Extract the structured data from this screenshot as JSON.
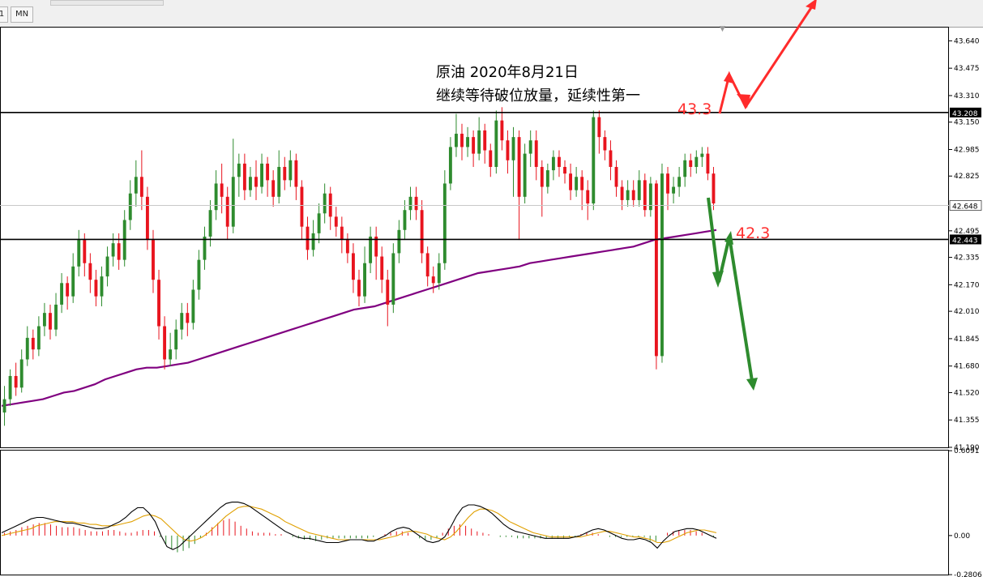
{
  "toolbar": {
    "timeframes": [
      "1",
      "MN"
    ]
  },
  "chart_data": {
    "type": "candlestick",
    "annotation": {
      "line1": "原油 2020年8月21日",
      "line2": "继续等待破位放量，延续性第一"
    },
    "price_axis": {
      "ticks": [
        "43.640",
        "43.475",
        "43.310",
        "43.150",
        "42.985",
        "42.825",
        "42.495",
        "42.335",
        "42.170",
        "42.010",
        "41.845",
        "41.680",
        "41.520",
        "41.355",
        "41.190"
      ]
    },
    "ylim": [
      41.19,
      43.72
    ],
    "levels": [
      {
        "value": 43.208,
        "label": "43.208",
        "color": "#000000"
      },
      {
        "value": 42.443,
        "label": "42.443",
        "color": "#000000"
      }
    ],
    "current_price": {
      "value": 42.648,
      "label": "42.648"
    },
    "target_labels": [
      {
        "text": "43.3",
        "color": "#ff3030"
      },
      {
        "text": "42.3",
        "color": "#ff3030"
      }
    ],
    "candles": [
      [
        41.4,
        41.48,
        41.32,
        41.56
      ],
      [
        41.48,
        41.62,
        41.44,
        41.66
      ],
      [
        41.62,
        41.55,
        41.5,
        41.7
      ],
      [
        41.55,
        41.72,
        41.52,
        41.78
      ],
      [
        41.72,
        41.85,
        41.68,
        41.92
      ],
      [
        41.85,
        41.78,
        41.72,
        41.9
      ],
      [
        41.78,
        41.92,
        41.74,
        41.98
      ],
      [
        41.92,
        42.0,
        41.86,
        42.06
      ],
      [
        42.0,
        41.9,
        41.84,
        42.05
      ],
      [
        41.9,
        42.05,
        41.86,
        42.12
      ],
      [
        42.05,
        42.18,
        42.0,
        42.24
      ],
      [
        42.18,
        42.1,
        42.02,
        42.22
      ],
      [
        42.1,
        42.28,
        42.06,
        42.36
      ],
      [
        42.28,
        42.44,
        42.22,
        42.5
      ],
      [
        42.44,
        42.3,
        42.22,
        42.48
      ],
      [
        42.3,
        42.2,
        42.12,
        42.36
      ],
      [
        42.2,
        42.1,
        42.04,
        42.26
      ],
      [
        42.1,
        42.22,
        42.04,
        42.28
      ],
      [
        42.22,
        42.34,
        42.16,
        42.4
      ],
      [
        42.34,
        42.42,
        42.28,
        42.48
      ],
      [
        42.42,
        42.32,
        42.26,
        42.48
      ],
      [
        42.32,
        42.56,
        42.28,
        42.62
      ],
      [
        42.56,
        42.72,
        42.5,
        42.8
      ],
      [
        42.72,
        42.82,
        42.64,
        42.92
      ],
      [
        42.82,
        42.7,
        42.62,
        42.98
      ],
      [
        42.7,
        42.44,
        42.38,
        42.76
      ],
      [
        42.44,
        42.2,
        42.12,
        42.5
      ],
      [
        42.2,
        41.92,
        41.84,
        42.26
      ],
      [
        41.92,
        41.72,
        41.66,
        41.98
      ],
      [
        41.72,
        41.78,
        41.68,
        41.88
      ],
      [
        41.78,
        41.9,
        41.72,
        41.96
      ],
      [
        41.9,
        42.0,
        41.84,
        42.06
      ],
      [
        42.0,
        41.94,
        41.86,
        42.06
      ],
      [
        41.94,
        42.14,
        41.9,
        42.2
      ],
      [
        42.14,
        42.32,
        42.08,
        42.38
      ],
      [
        42.32,
        42.46,
        42.26,
        42.52
      ],
      [
        42.46,
        42.62,
        42.4,
        42.68
      ],
      [
        42.62,
        42.78,
        42.56,
        42.86
      ],
      [
        42.78,
        42.7,
        42.6,
        42.9
      ],
      [
        42.7,
        42.52,
        42.44,
        42.76
      ],
      [
        42.52,
        42.82,
        42.48,
        43.05
      ],
      [
        42.82,
        42.9,
        42.7,
        42.96
      ],
      [
        42.9,
        42.74,
        42.68,
        42.96
      ],
      [
        42.74,
        42.82,
        42.7,
        42.88
      ],
      [
        42.82,
        42.76,
        42.68,
        42.92
      ],
      [
        42.76,
        42.9,
        42.72,
        42.96
      ],
      [
        42.9,
        42.8,
        42.7,
        42.94
      ],
      [
        42.8,
        42.7,
        42.64,
        42.86
      ],
      [
        42.7,
        42.88,
        42.66,
        42.98
      ],
      [
        42.88,
        42.8,
        42.74,
        42.94
      ],
      [
        42.8,
        42.92,
        42.76,
        42.98
      ],
      [
        42.92,
        42.76,
        42.68,
        42.96
      ],
      [
        42.76,
        42.52,
        42.44,
        42.8
      ],
      [
        42.52,
        42.38,
        42.32,
        42.58
      ],
      [
        42.38,
        42.48,
        42.34,
        42.56
      ],
      [
        42.48,
        42.6,
        42.42,
        42.66
      ],
      [
        42.6,
        42.72,
        42.54,
        42.78
      ],
      [
        42.72,
        42.58,
        42.5,
        42.76
      ],
      [
        42.58,
        42.52,
        42.46,
        42.64
      ],
      [
        42.52,
        42.44,
        42.36,
        42.58
      ],
      [
        42.44,
        42.36,
        42.3,
        42.48
      ],
      [
        42.36,
        42.2,
        42.12,
        42.42
      ],
      [
        42.2,
        42.1,
        42.04,
        42.26
      ],
      [
        42.1,
        42.3,
        42.06,
        42.4
      ],
      [
        42.3,
        42.46,
        42.24,
        42.52
      ],
      [
        42.46,
        42.34,
        42.2,
        42.52
      ],
      [
        42.34,
        42.2,
        42.12,
        42.4
      ],
      [
        42.2,
        42.05,
        41.92,
        42.26
      ],
      [
        42.05,
        42.36,
        42.0,
        42.42
      ],
      [
        42.36,
        42.5,
        42.3,
        42.56
      ],
      [
        42.5,
        42.62,
        42.44,
        42.68
      ],
      [
        42.62,
        42.7,
        42.56,
        42.76
      ],
      [
        42.7,
        42.62,
        42.56,
        42.76
      ],
      [
        42.62,
        42.36,
        42.3,
        42.68
      ],
      [
        42.36,
        42.22,
        42.16,
        42.4
      ],
      [
        42.22,
        42.18,
        42.12,
        42.28
      ],
      [
        42.18,
        42.3,
        42.14,
        42.36
      ],
      [
        42.3,
        42.78,
        42.26,
        42.86
      ],
      [
        42.78,
        43.0,
        42.74,
        43.06
      ],
      [
        43.0,
        43.08,
        42.94,
        43.2
      ],
      [
        43.08,
        43.0,
        42.92,
        43.14
      ],
      [
        43.0,
        43.06,
        42.94,
        43.12
      ],
      [
        43.06,
        42.96,
        42.88,
        43.1
      ],
      [
        42.96,
        43.1,
        42.92,
        43.18
      ],
      [
        43.1,
        42.98,
        42.9,
        43.14
      ],
      [
        42.98,
        42.88,
        42.82,
        43.02
      ],
      [
        42.88,
        43.16,
        42.84,
        43.22
      ],
      [
        43.16,
        43.04,
        42.98,
        43.24
      ],
      [
        43.04,
        42.92,
        42.84,
        43.1
      ],
      [
        42.92,
        43.06,
        42.7,
        43.12
      ],
      [
        43.06,
        42.7,
        42.44,
        43.1
      ],
      [
        42.7,
        42.96,
        42.66,
        43.02
      ],
      [
        42.96,
        43.04,
        42.88,
        43.1
      ],
      [
        43.04,
        42.88,
        42.8,
        43.1
      ],
      [
        42.88,
        42.76,
        42.58,
        42.92
      ],
      [
        42.76,
        42.86,
        42.72,
        42.9
      ],
      [
        42.86,
        42.94,
        42.8,
        42.98
      ],
      [
        42.94,
        42.88,
        42.82,
        42.98
      ],
      [
        42.88,
        42.84,
        42.78,
        42.92
      ],
      [
        42.84,
        42.74,
        42.68,
        42.9
      ],
      [
        42.74,
        42.82,
        42.7,
        42.88
      ],
      [
        42.82,
        42.74,
        42.62,
        42.86
      ],
      [
        42.74,
        42.66,
        42.56,
        42.8
      ],
      [
        42.66,
        43.18,
        42.62,
        43.22
      ],
      [
        43.18,
        43.06,
        42.96,
        43.22
      ],
      [
        43.06,
        42.98,
        42.92,
        43.1
      ],
      [
        42.98,
        42.88,
        42.8,
        43.04
      ],
      [
        42.88,
        42.76,
        42.7,
        42.92
      ],
      [
        42.76,
        42.68,
        42.62,
        42.8
      ],
      [
        42.68,
        42.74,
        42.64,
        42.8
      ],
      [
        42.74,
        42.68,
        42.64,
        42.8
      ],
      [
        42.68,
        42.8,
        42.64,
        42.86
      ],
      [
        42.8,
        42.62,
        42.58,
        42.84
      ],
      [
        42.62,
        42.78,
        42.58,
        42.82
      ],
      [
        42.78,
        41.74,
        41.66,
        42.8
      ],
      [
        41.74,
        42.84,
        41.7,
        42.9
      ],
      [
        42.84,
        42.72,
        42.62,
        42.88
      ],
      [
        42.72,
        42.76,
        42.66,
        42.82
      ],
      [
        42.76,
        42.82,
        42.7,
        42.88
      ],
      [
        42.82,
        42.92,
        42.76,
        42.96
      ],
      [
        42.92,
        42.88,
        42.82,
        42.96
      ],
      [
        42.88,
        42.94,
        42.84,
        42.98
      ],
      [
        42.94,
        42.96,
        42.88,
        43.0
      ],
      [
        42.96,
        42.84,
        42.8,
        43.0
      ],
      [
        42.84,
        42.66,
        42.62,
        42.88
      ]
    ],
    "sma": [
      41.44,
      41.45,
      41.46,
      41.47,
      41.48,
      41.5,
      41.52,
      41.53,
      41.55,
      41.57,
      41.6,
      41.62,
      41.64,
      41.66,
      41.67,
      41.67,
      41.68,
      41.69,
      41.7,
      41.72,
      41.74,
      41.76,
      41.78,
      41.8,
      41.82,
      41.84,
      41.86,
      41.88,
      41.9,
      41.92,
      41.94,
      41.96,
      41.98,
      42.0,
      42.02,
      42.03,
      42.04,
      42.06,
      42.08,
      42.1,
      42.12,
      42.14,
      42.16,
      42.18,
      42.2,
      42.22,
      42.24,
      42.25,
      42.26,
      42.27,
      42.28,
      42.3,
      42.31,
      42.32,
      42.33,
      42.34,
      42.35,
      42.36,
      42.37,
      42.38,
      42.39,
      42.4,
      42.42,
      42.44,
      42.45,
      42.46,
      42.47,
      42.48,
      42.49,
      42.5
    ],
    "macd": {
      "ticks": [
        "0.6091",
        "0.00",
        "-0.2806"
      ],
      "ylim": [
        -0.28,
        0.61
      ],
      "histogram": [
        0.02,
        0.03,
        0.04,
        0.06,
        0.07,
        0.08,
        0.09,
        0.09,
        0.08,
        0.07,
        0.06,
        0.06,
        0.06,
        0.05,
        0.04,
        0.03,
        0.03,
        0.03,
        0.04,
        0.04,
        0.03,
        0.02,
        0.02,
        0.03,
        0.04,
        0.04,
        0.03,
        -0.01,
        -0.06,
        -0.1,
        -0.12,
        -0.11,
        -0.09,
        -0.06,
        -0.02,
        0.02,
        0.06,
        0.09,
        0.11,
        0.12,
        0.1,
        0.07,
        0.05,
        0.03,
        0.02,
        0.02,
        0.02,
        0.01,
        0.01,
        0.0,
        -0.01,
        -0.02,
        -0.03,
        -0.03,
        -0.04,
        -0.03,
        -0.02,
        -0.02,
        -0.02,
        -0.02,
        -0.02,
        -0.02,
        -0.02,
        -0.02,
        -0.01,
        0.0,
        0.01,
        0.02,
        0.03,
        0.03,
        0.02,
        0.0,
        -0.02,
        -0.03,
        -0.03,
        -0.02,
        0.02,
        0.05,
        0.07,
        0.08,
        0.07,
        0.05,
        0.03,
        0.02,
        0.01,
        0.0,
        -0.01,
        -0.01,
        -0.01,
        -0.02,
        -0.02,
        -0.02,
        -0.02,
        -0.02,
        -0.02,
        -0.02,
        -0.02,
        -0.02,
        -0.01,
        -0.01,
        0.01,
        0.02,
        0.02,
        0.01,
        0.0,
        -0.01,
        -0.01,
        -0.01,
        -0.01,
        -0.01,
        -0.01,
        -0.01,
        -0.04,
        -0.04,
        0.0,
        0.02,
        0.03,
        0.04,
        0.04,
        0.04,
        0.03,
        0.02,
        0.0,
        -0.01
      ],
      "main": [
        0.02,
        0.04,
        0.06,
        0.08,
        0.1,
        0.12,
        0.13,
        0.13,
        0.12,
        0.11,
        0.1,
        0.09,
        0.09,
        0.08,
        0.07,
        0.06,
        0.05,
        0.05,
        0.06,
        0.08,
        0.1,
        0.13,
        0.17,
        0.2,
        0.2,
        0.16,
        0.1,
        0.0,
        -0.08,
        -0.1,
        -0.08,
        -0.04,
        0.0,
        0.04,
        0.08,
        0.12,
        0.16,
        0.2,
        0.23,
        0.24,
        0.24,
        0.23,
        0.21,
        0.18,
        0.15,
        0.12,
        0.09,
        0.06,
        0.03,
        0.01,
        -0.01,
        -0.02,
        -0.02,
        -0.03,
        -0.04,
        -0.05,
        -0.05,
        -0.05,
        -0.04,
        -0.03,
        -0.03,
        -0.03,
        -0.04,
        -0.04,
        -0.02,
        0.0,
        0.03,
        0.05,
        0.06,
        0.05,
        0.02,
        -0.01,
        -0.04,
        -0.05,
        -0.04,
        -0.01,
        0.06,
        0.14,
        0.2,
        0.22,
        0.22,
        0.21,
        0.19,
        0.16,
        0.12,
        0.08,
        0.05,
        0.03,
        0.02,
        0.01,
        0.0,
        -0.01,
        -0.02,
        -0.02,
        -0.02,
        -0.02,
        -0.02,
        -0.01,
        0.0,
        0.02,
        0.04,
        0.05,
        0.04,
        0.02,
        0.0,
        -0.02,
        -0.03,
        -0.03,
        -0.02,
        -0.03,
        -0.05,
        -0.09,
        -0.04,
        0.0,
        0.03,
        0.04,
        0.05,
        0.05,
        0.04,
        0.02,
        0.0,
        -0.02
      ],
      "signal": [
        0.0,
        0.01,
        0.02,
        0.03,
        0.04,
        0.05,
        0.07,
        0.08,
        0.09,
        0.1,
        0.1,
        0.1,
        0.1,
        0.09,
        0.09,
        0.08,
        0.08,
        0.07,
        0.07,
        0.07,
        0.08,
        0.09,
        0.1,
        0.12,
        0.14,
        0.15,
        0.14,
        0.12,
        0.08,
        0.04,
        0.0,
        -0.03,
        -0.04,
        -0.03,
        -0.01,
        0.02,
        0.06,
        0.1,
        0.14,
        0.17,
        0.2,
        0.21,
        0.21,
        0.2,
        0.19,
        0.17,
        0.15,
        0.13,
        0.1,
        0.08,
        0.06,
        0.04,
        0.02,
        0.01,
        0.0,
        -0.01,
        -0.02,
        -0.03,
        -0.03,
        -0.03,
        -0.03,
        -0.03,
        -0.03,
        -0.03,
        -0.03,
        -0.02,
        -0.01,
        0.0,
        0.02,
        0.03,
        0.03,
        0.02,
        0.01,
        -0.01,
        -0.02,
        -0.03,
        -0.01,
        0.03,
        0.08,
        0.13,
        0.17,
        0.19,
        0.19,
        0.18,
        0.16,
        0.13,
        0.1,
        0.08,
        0.06,
        0.04,
        0.02,
        0.01,
        0.0,
        -0.01,
        -0.01,
        -0.01,
        -0.01,
        -0.01,
        -0.01,
        0.0,
        0.01,
        0.02,
        0.03,
        0.03,
        0.02,
        0.01,
        0.0,
        -0.01,
        -0.01,
        -0.02,
        -0.03,
        -0.05,
        -0.05,
        -0.04,
        -0.02,
        0.0,
        0.02,
        0.03,
        0.04,
        0.04,
        0.03,
        0.02
      ]
    }
  }
}
